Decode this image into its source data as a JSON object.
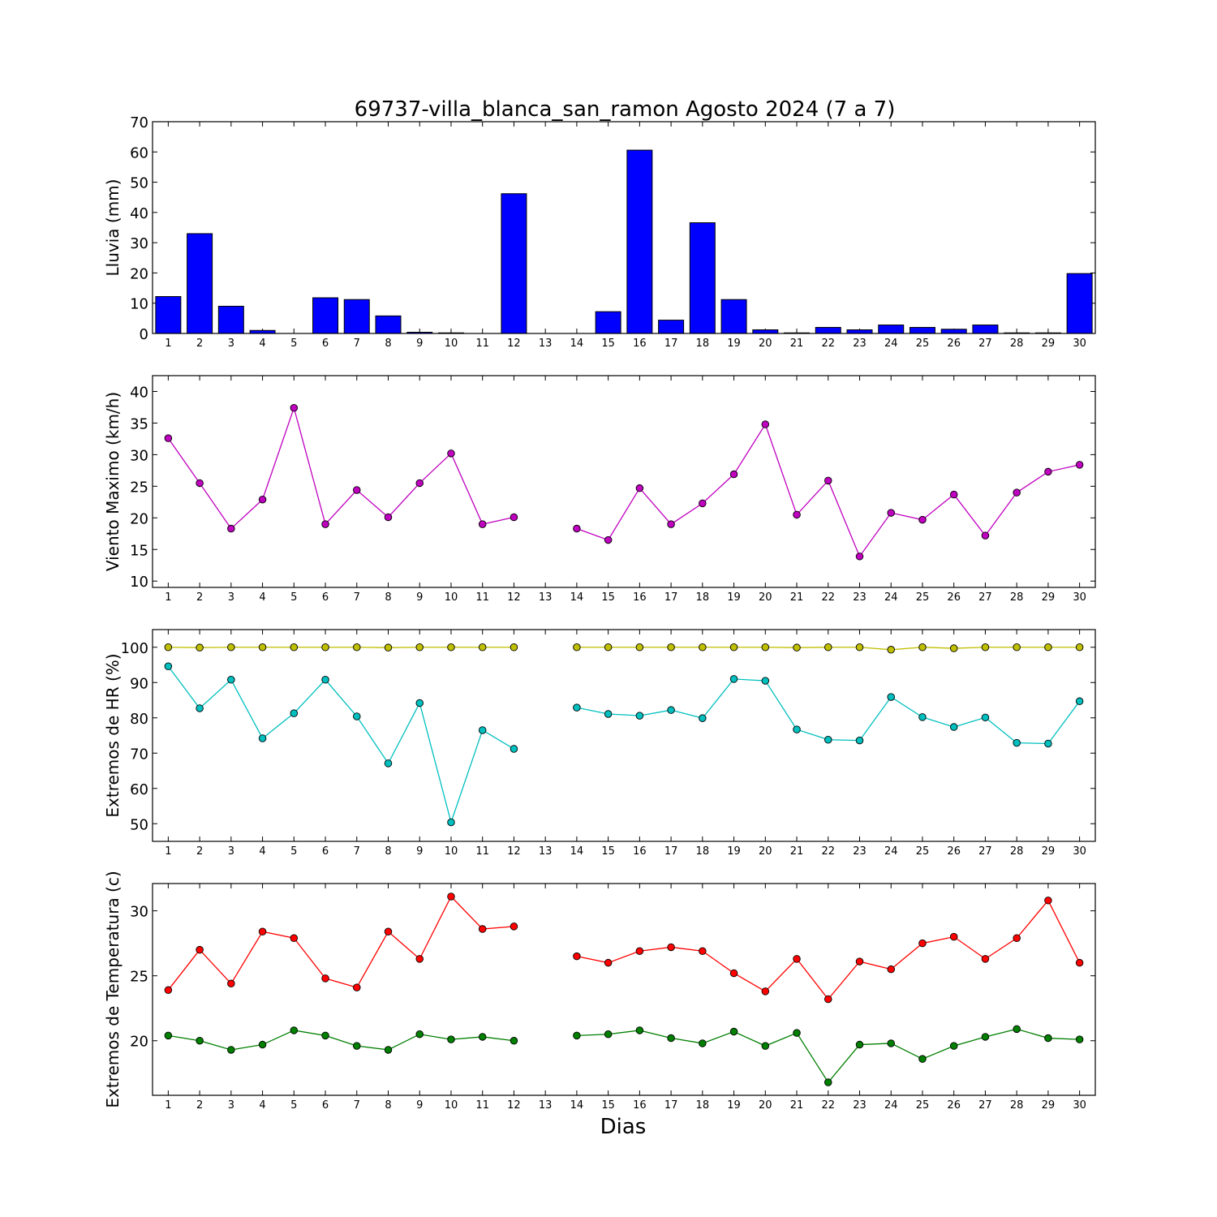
{
  "title": "69737-villa_blanca_san_ramon Agosto 2024  (7 a 7)",
  "xlabel": "Dias",
  "days": [
    1,
    2,
    3,
    4,
    5,
    6,
    7,
    8,
    9,
    10,
    11,
    12,
    13,
    14,
    15,
    16,
    17,
    18,
    19,
    20,
    21,
    22,
    23,
    24,
    25,
    26,
    27,
    28,
    29,
    30
  ],
  "chart_data": [
    {
      "type": "bar",
      "ylabel": "Lluvia (mm)",
      "ylim": [
        0,
        70
      ],
      "yticks": [
        0,
        10,
        20,
        30,
        40,
        50,
        60,
        70
      ],
      "series": [
        {
          "color": "#0000ff",
          "values": [
            12.2,
            33.0,
            9.0,
            1.0,
            0.0,
            11.8,
            11.2,
            5.8,
            0.4,
            0.2,
            0.0,
            46.2,
            0.0,
            0.0,
            7.2,
            60.6,
            4.4,
            36.6,
            11.2,
            1.2,
            0.2,
            2.0,
            1.2,
            2.8,
            2.0,
            1.4,
            2.8,
            0.2,
            0.2,
            19.8
          ]
        }
      ]
    },
    {
      "type": "line",
      "ylabel": "Viento Maximo (km/h)",
      "ylim": [
        9,
        42.5
      ],
      "yticks": [
        10,
        15,
        20,
        25,
        30,
        35,
        40
      ],
      "series": [
        {
          "color": "#bf00bf",
          "values": [
            32.6,
            25.5,
            18.3,
            22.9,
            37.4,
            19.0,
            24.4,
            20.1,
            25.5,
            30.2,
            19.0,
            20.1,
            null,
            18.3,
            16.5,
            24.7,
            19.0,
            22.3,
            26.9,
            34.8,
            20.5,
            25.9,
            13.9,
            20.8,
            19.7,
            23.7,
            17.2,
            24.0,
            27.3,
            28.4
          ]
        }
      ]
    },
    {
      "type": "line",
      "ylabel": "Extremos de HR (%)",
      "ylim": [
        45,
        105
      ],
      "yticks": [
        50,
        60,
        70,
        80,
        90,
        100
      ],
      "series": [
        {
          "color": "#bfbf00",
          "values": [
            100,
            99.9,
            100,
            100,
            100,
            100,
            100,
            99.9,
            100,
            100,
            100,
            100,
            null,
            100,
            100,
            100,
            100,
            100,
            100,
            100,
            99.9,
            100,
            100,
            99.3,
            100,
            99.7,
            100,
            100,
            100,
            100
          ]
        },
        {
          "color": "#00bfbf",
          "values": [
            94.6,
            82.7,
            90.8,
            74.2,
            81.3,
            90.8,
            80.4,
            67.1,
            84.2,
            50.4,
            76.5,
            71.2,
            null,
            82.9,
            81.1,
            80.6,
            82.2,
            79.9,
            91.0,
            90.5,
            76.7,
            73.8,
            73.6,
            85.9,
            80.2,
            77.4,
            80.1,
            72.9,
            72.7,
            84.7
          ]
        }
      ]
    },
    {
      "type": "line",
      "ylabel": "Extremos de Temperatura (c)",
      "ylim": [
        15.8,
        32.1
      ],
      "yticks": [
        20,
        25,
        30
      ],
      "series": [
        {
          "color": "#ff0000",
          "values": [
            23.9,
            27.0,
            24.4,
            28.4,
            27.9,
            24.8,
            24.1,
            28.4,
            26.3,
            31.1,
            28.6,
            28.8,
            null,
            26.5,
            26.0,
            26.9,
            27.2,
            26.9,
            25.2,
            23.8,
            26.3,
            23.2,
            26.1,
            25.5,
            27.5,
            28.0,
            26.3,
            27.9,
            30.8,
            26.0
          ]
        },
        {
          "color": "#007f00",
          "values": [
            20.4,
            20.0,
            19.3,
            19.7,
            20.8,
            20.4,
            19.6,
            19.3,
            20.5,
            20.1,
            20.3,
            20.0,
            null,
            20.4,
            20.5,
            20.8,
            20.2,
            19.8,
            20.7,
            19.6,
            20.6,
            16.8,
            19.7,
            19.8,
            18.6,
            19.6,
            20.3,
            20.9,
            20.2,
            20.1
          ]
        }
      ]
    }
  ]
}
